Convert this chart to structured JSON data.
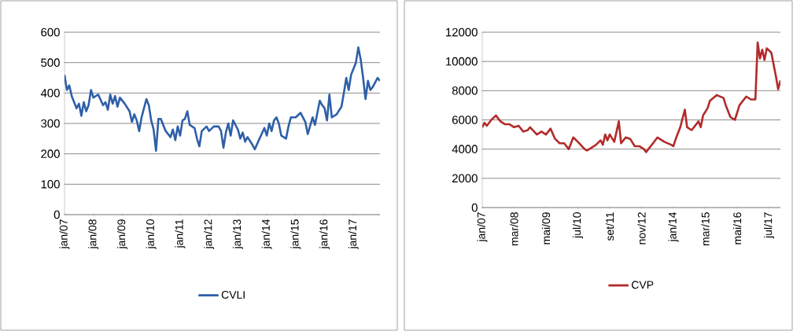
{
  "chart_data": [
    {
      "type": "line",
      "x": [
        "2007-01",
        "2007-02",
        "2007-03",
        "2007-04",
        "2007-05",
        "2007-06",
        "2007-07",
        "2007-08",
        "2007-09",
        "2007-10",
        "2007-11",
        "2007-12",
        "2008-01",
        "2008-03",
        "2008-05",
        "2008-06",
        "2008-07",
        "2008-08",
        "2008-09",
        "2008-10",
        "2008-11",
        "2008-12",
        "2009-02",
        "2009-04",
        "2009-05",
        "2009-06",
        "2009-07",
        "2009-08",
        "2009-09",
        "2009-11",
        "2009-12",
        "2010-01",
        "2010-02",
        "2010-03",
        "2010-04",
        "2010-05",
        "2010-07",
        "2010-08",
        "2010-09",
        "2010-10",
        "2010-11",
        "2010-12",
        "2011-01",
        "2011-02",
        "2011-03",
        "2011-04",
        "2011-05",
        "2011-07",
        "2011-08",
        "2011-09",
        "2011-10",
        "2011-12",
        "2012-01",
        "2012-03",
        "2012-05",
        "2012-06",
        "2012-07",
        "2012-08",
        "2012-09",
        "2012-10",
        "2012-11",
        "2013-01",
        "2013-02",
        "2013-03",
        "2013-04",
        "2013-05",
        "2013-07",
        "2013-08",
        "2013-10",
        "2013-12",
        "2014-01",
        "2014-02",
        "2014-03",
        "2014-04",
        "2014-05",
        "2014-06",
        "2014-07",
        "2014-09",
        "2014-10",
        "2014-11",
        "2014-12",
        "2015-01",
        "2015-03",
        "2015-05",
        "2015-06",
        "2015-08",
        "2015-09",
        "2015-11",
        "2015-12",
        "2016-01",
        "2016-02",
        "2016-03",
        "2016-04",
        "2016-06",
        "2016-08",
        "2016-09",
        "2016-10",
        "2016-11",
        "2016-12",
        "2017-01",
        "2017-02",
        "2017-03",
        "2017-04",
        "2017-05",
        "2017-06",
        "2017-07",
        "2017-08",
        "2017-09",
        "2017-11",
        "2017-12"
      ],
      "series": [
        {
          "name": "CVLI",
          "color": "#2e5fa8",
          "values": [
            460,
            410,
            425,
            390,
            370,
            350,
            365,
            325,
            370,
            340,
            360,
            410,
            385,
            395,
            360,
            370,
            345,
            395,
            365,
            390,
            355,
            385,
            365,
            340,
            305,
            330,
            310,
            275,
            320,
            380,
            360,
            310,
            280,
            210,
            315,
            315,
            275,
            265,
            255,
            280,
            245,
            290,
            260,
            310,
            315,
            340,
            295,
            285,
            250,
            225,
            275,
            290,
            275,
            290,
            290,
            275,
            220,
            270,
            300,
            260,
            310,
            280,
            250,
            270,
            240,
            255,
            230,
            215,
            250,
            285,
            260,
            300,
            275,
            310,
            320,
            300,
            260,
            250,
            290,
            320,
            320,
            320,
            335,
            305,
            265,
            320,
            295,
            375,
            360,
            350,
            310,
            395,
            320,
            330,
            355,
            400,
            450,
            410,
            460,
            480,
            500,
            550,
            510,
            450,
            380,
            440,
            410,
            420,
            450,
            440
          ]
        }
      ],
      "xlim": [
        "2007-01",
        "2017-12"
      ],
      "xticks": [
        {
          "value": "2007-01",
          "label": "jan/07"
        },
        {
          "value": "2008-01",
          "label": "jan/08"
        },
        {
          "value": "2009-01",
          "label": "jan/09"
        },
        {
          "value": "2010-01",
          "label": "jan/10"
        },
        {
          "value": "2011-01",
          "label": "jan/11"
        },
        {
          "value": "2012-01",
          "label": "jan/12"
        },
        {
          "value": "2013-01",
          "label": "jan/13"
        },
        {
          "value": "2014-01",
          "label": "jan/14"
        },
        {
          "value": "2015-01",
          "label": "jan/15"
        },
        {
          "value": "2016-01",
          "label": "jan/16"
        },
        {
          "value": "2017-01",
          "label": "jan/17"
        }
      ],
      "ylim": [
        0,
        600
      ],
      "yticks": [
        0,
        100,
        200,
        300,
        400,
        500,
        600
      ],
      "grid": "y",
      "legend": "bottom"
    },
    {
      "type": "line",
      "x": [
        "2007-01",
        "2007-02",
        "2007-03",
        "2007-05",
        "2007-07",
        "2007-09",
        "2007-11",
        "2008-01",
        "2008-03",
        "2008-05",
        "2008-07",
        "2008-09",
        "2008-10",
        "2009-01",
        "2009-03",
        "2009-05",
        "2009-07",
        "2009-09",
        "2009-11",
        "2010-01",
        "2010-03",
        "2010-05",
        "2010-07",
        "2010-10",
        "2010-11",
        "2011-01",
        "2011-03",
        "2011-05",
        "2011-06",
        "2011-07",
        "2011-08",
        "2011-09",
        "2011-11",
        "2012-01",
        "2012-02",
        "2012-04",
        "2012-06",
        "2012-08",
        "2012-10",
        "2012-12",
        "2013-01",
        "2013-03",
        "2013-06",
        "2013-09",
        "2013-12",
        "2014-01",
        "2014-02",
        "2014-04",
        "2014-06",
        "2014-07",
        "2014-09",
        "2014-12",
        "2015-01",
        "2015-02",
        "2015-04",
        "2015-05",
        "2015-08",
        "2015-11",
        "2015-12",
        "2016-02",
        "2016-04",
        "2016-06",
        "2016-09",
        "2016-11",
        "2017-01",
        "2017-02",
        "2017-03",
        "2017-04",
        "2017-05",
        "2017-06",
        "2017-08",
        "2017-10",
        "2017-11",
        "2017-12"
      ],
      "series": [
        {
          "name": "CVP",
          "color": "#b22a2a",
          "values": [
            5500,
            5800,
            5600,
            6000,
            6300,
            5900,
            5700,
            5700,
            5500,
            5600,
            5200,
            5300,
            5500,
            5000,
            5200,
            5000,
            5400,
            4700,
            4400,
            4400,
            4000,
            4800,
            4500,
            4000,
            3900,
            4100,
            4300,
            4600,
            4300,
            5000,
            4600,
            5000,
            4500,
            5900,
            4400,
            4800,
            4700,
            4200,
            4200,
            4000,
            3800,
            4200,
            4800,
            4500,
            4300,
            4200,
            4700,
            5500,
            6700,
            5500,
            5300,
            5900,
            5500,
            6300,
            6800,
            7300,
            7700,
            7500,
            7000,
            6200,
            6000,
            7000,
            7600,
            7400,
            7400,
            11300,
            10200,
            10800,
            10100,
            10900,
            10600,
            9000,
            8100,
            8700
          ]
        }
      ],
      "xlim": [
        "2007-01",
        "2017-12"
      ],
      "xticks": [
        {
          "value": "2007-01",
          "label": "jan/07"
        },
        {
          "value": "2008-03",
          "label": "mar/08"
        },
        {
          "value": "2009-05",
          "label": "mai/09"
        },
        {
          "value": "2010-07",
          "label": "jul/10"
        },
        {
          "value": "2011-09",
          "label": "set/11"
        },
        {
          "value": "2012-11",
          "label": "nov/12"
        },
        {
          "value": "2014-01",
          "label": "jan/14"
        },
        {
          "value": "2015-03",
          "label": "mar/15"
        },
        {
          "value": "2016-05",
          "label": "mai/16"
        },
        {
          "value": "2017-07",
          "label": "jul/17"
        }
      ],
      "ylim": [
        0,
        12000
      ],
      "yticks": [
        0,
        2000,
        4000,
        6000,
        8000,
        10000,
        12000
      ],
      "grid": "y",
      "legend": "bottom"
    }
  ]
}
